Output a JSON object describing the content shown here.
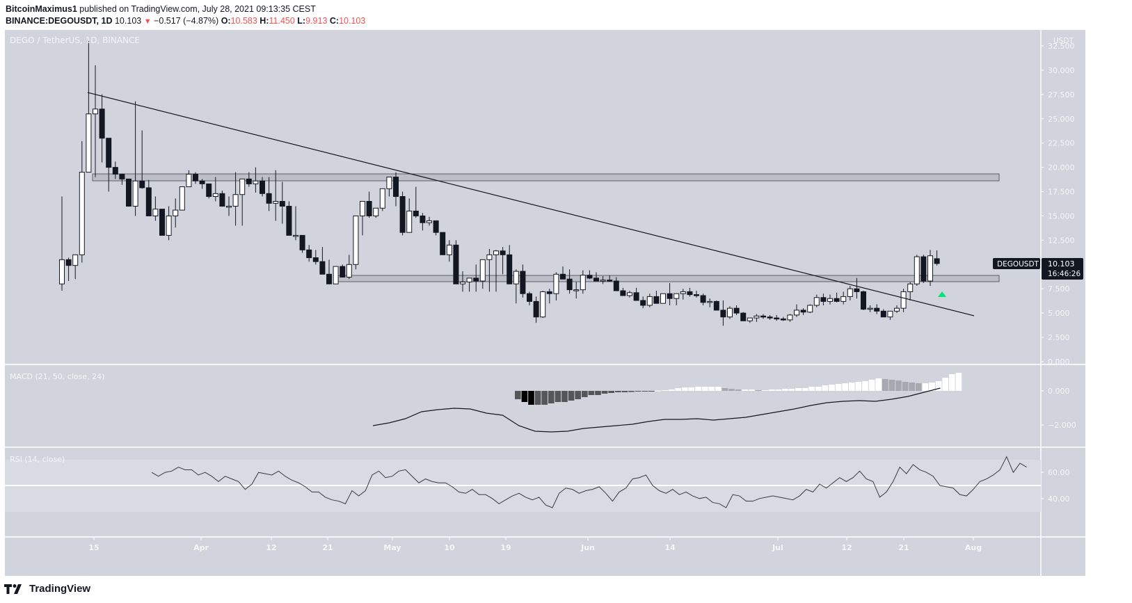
{
  "header": {
    "publisher": "BitcoinMaximus1",
    "published_text": " published on TradingView.com, July 28, 2021 09:13:35 CEST",
    "symbol_line": "BINANCE:DEGOUSDT, 1D",
    "last": "10.103",
    "change_icon": "triangle-down-icon",
    "change": "−0.517 (−4.87%)",
    "o_label": "O:",
    "o": "10.583",
    "h_label": "H:",
    "h": "11.450",
    "l_label": "L:",
    "l": "9.913",
    "c_label": "C:",
    "c": "10.103"
  },
  "chart_title": "DEGO / TetherUS, 1D, BINANCE",
  "price_axis": {
    "unit": "USDT",
    "ticks": [
      "32.500",
      "30.000",
      "27.500",
      "25.000",
      "22.500",
      "20.000",
      "17.500",
      "15.000",
      "12.500",
      "7.500",
      "5.000",
      "2.500",
      "0.000"
    ]
  },
  "price_label": {
    "symbol": "DEGOUSDT",
    "price": "10.103",
    "countdown": "16:46:26"
  },
  "macd": {
    "label": "MACD (21, 50, close, 24)",
    "ticks": [
      "0.000",
      "0.000",
      "−2.000"
    ]
  },
  "rsi": {
    "label": "RSI (14, close)",
    "ticks": [
      "60.00",
      "40.00"
    ]
  },
  "time_axis": {
    "ticks": [
      "15",
      "Apr",
      "12",
      "21",
      "May",
      "10",
      "19",
      "Jun",
      "14",
      "Jul",
      "12",
      "21",
      "Aug"
    ]
  },
  "footer": {
    "brand": "TradingView",
    "logo_icon": "tradingview-logo-icon"
  },
  "colors": {
    "bg": "#d1d4dc",
    "up": "#ffffff",
    "down": "#131722",
    "signal": "#00e676",
    "zone": "#bcbec8"
  },
  "chart_data": [
    {
      "type": "candlestick",
      "title": "DEGO / TetherUS, 1D, BINANCE",
      "ylabel": "USDT",
      "ylim": [
        0,
        33
      ],
      "x_ticks": [
        "15",
        "Apr",
        "12",
        "21",
        "May",
        "10",
        "19",
        "Jun",
        "14",
        "Jul",
        "12",
        "21",
        "Aug"
      ],
      "annotations": [
        {
          "type": "resistance_zone",
          "range": [
            18.7,
            19.4
          ]
        },
        {
          "type": "support_zone",
          "range": [
            8.3,
            8.9
          ]
        },
        {
          "type": "descending_trendline",
          "from": {
            "date": "Mar 15",
            "value": 27.7
          },
          "to": {
            "date": "Jul 31",
            "value": 4.8
          }
        },
        {
          "type": "signal_arrow_up",
          "date": "Jul 27",
          "value": 7.0,
          "color": "#00e676"
        }
      ],
      "ohlc": [
        [
          8.0,
          17.0,
          7.3,
          10.5
        ],
        [
          10.5,
          10.7,
          8.3,
          9.9
        ],
        [
          9.9,
          11.0,
          8.5,
          11.0
        ],
        [
          11.0,
          22.7,
          10.2,
          19.5
        ],
        [
          19.5,
          33.0,
          19.5,
          25.5
        ],
        [
          25.5,
          30.5,
          19.0,
          26.0
        ],
        [
          26.0,
          27.5,
          20.5,
          23.0
        ],
        [
          23.0,
          21.3,
          17.5,
          20.0
        ],
        [
          20.0,
          20.6,
          18.8,
          19.3
        ],
        [
          19.3,
          19.0,
          18.2,
          18.8
        ],
        [
          18.8,
          18.5,
          16.0,
          16.0
        ],
        [
          16.0,
          26.8,
          15.0,
          18.6
        ],
        [
          18.6,
          23.8,
          17.8,
          17.9
        ],
        [
          17.9,
          18.7,
          15.3,
          15.0
        ],
        [
          15.0,
          17.0,
          14.5,
          15.7
        ],
        [
          15.7,
          14.6,
          13.8,
          13.0
        ],
        [
          13.0,
          16.0,
          12.5,
          15.0
        ],
        [
          15.0,
          16.8,
          13.8,
          15.6
        ],
        [
          15.6,
          17.8,
          15.8,
          18.0
        ],
        [
          18.0,
          19.7,
          18.0,
          19.3
        ],
        [
          19.3,
          19.5,
          18.3,
          18.6
        ],
        [
          18.6,
          18.8,
          17.8,
          18.3
        ],
        [
          18.3,
          17.8,
          16.8,
          17.0
        ],
        [
          17.0,
          19.0,
          16.5,
          17.3
        ],
        [
          17.3,
          17.6,
          16.3,
          16.0
        ],
        [
          16.0,
          17.0,
          15.0,
          16.0
        ],
        [
          16.0,
          19.5,
          14.0,
          17.2
        ],
        [
          17.2,
          18.5,
          14.0,
          18.8
        ],
        [
          18.8,
          19.5,
          18.0,
          18.3
        ],
        [
          18.3,
          20.0,
          17.4,
          18.6
        ],
        [
          18.6,
          19.0,
          17.0,
          17.3
        ],
        [
          17.3,
          19.0,
          15.5,
          16.3
        ],
        [
          16.3,
          19.7,
          14.5,
          16.5
        ],
        [
          16.5,
          18.5,
          14.2,
          16.0
        ],
        [
          16.0,
          16.5,
          13.6,
          13.0
        ],
        [
          13.0,
          16.0,
          12.5,
          13.0
        ],
        [
          13.0,
          12.2,
          11.2,
          11.5
        ],
        [
          11.5,
          12.0,
          10.3,
          10.7
        ],
        [
          10.7,
          11.5,
          10.0,
          10.3
        ],
        [
          10.3,
          11.8,
          9.5,
          9.0
        ],
        [
          9.0,
          10.5,
          8.8,
          8.0
        ],
        [
          8.0,
          9.5,
          8.0,
          9.8
        ],
        [
          9.8,
          10.0,
          8.8,
          8.7
        ],
        [
          8.7,
          11.0,
          8.5,
          10.0
        ],
        [
          10.0,
          15.0,
          9.5,
          15.0
        ],
        [
          15.0,
          16.3,
          13.0,
          16.5
        ],
        [
          16.5,
          17.5,
          14.8,
          15.0
        ],
        [
          15.0,
          15.8,
          14.8,
          15.8
        ],
        [
          15.8,
          17.0,
          15.5,
          17.8
        ],
        [
          17.8,
          19.0,
          17.0,
          19.0
        ],
        [
          19.0,
          19.5,
          16.0,
          17.0
        ],
        [
          17.0,
          17.5,
          13.0,
          13.3
        ],
        [
          13.3,
          16.8,
          13.3,
          15.5
        ],
        [
          15.5,
          18.0,
          14.8,
          15.0
        ],
        [
          15.0,
          15.3,
          13.5,
          14.3
        ],
        [
          14.3,
          14.9,
          14.0,
          14.5
        ],
        [
          14.5,
          14.3,
          13.0,
          13.3
        ],
        [
          13.3,
          13.0,
          12.6,
          11.0
        ],
        [
          11.0,
          12.5,
          10.3,
          12.0
        ],
        [
          12.0,
          12.5,
          9.5,
          8.0
        ],
        [
          8.0,
          9.3,
          7.2,
          8.2
        ],
        [
          8.2,
          8.5,
          7.2,
          8.6
        ],
        [
          8.6,
          10.0,
          7.2,
          8.3
        ],
        [
          8.3,
          10.3,
          7.5,
          10.5
        ],
        [
          10.5,
          11.6,
          7.2,
          11.0
        ],
        [
          11.0,
          11.5,
          7.2,
          11.4
        ],
        [
          11.4,
          11.8,
          9.0,
          11.0
        ],
        [
          11.0,
          12.0,
          10.0,
          8.0
        ],
        [
          8.0,
          9.5,
          6.0,
          9.3
        ],
        [
          9.3,
          10.0,
          6.6,
          7.0
        ],
        [
          7.0,
          7.2,
          5.8,
          6.2
        ],
        [
          6.2,
          6.7,
          4.0,
          4.6
        ],
        [
          4.6,
          7.3,
          4.5,
          7.2
        ],
        [
          7.2,
          7.5,
          6.0,
          7.0
        ],
        [
          7.0,
          9.2,
          6.3,
          9.0
        ],
        [
          9.0,
          9.8,
          8.5,
          8.5
        ],
        [
          8.5,
          9.5,
          7.0,
          7.4
        ],
        [
          7.4,
          8.2,
          6.5,
          7.4
        ],
        [
          7.4,
          9.4,
          7.0,
          8.9
        ],
        [
          8.9,
          9.4,
          8.5,
          8.6
        ],
        [
          8.6,
          9.2,
          8.3,
          8.3
        ],
        [
          8.3,
          8.8,
          8.0,
          8.4
        ],
        [
          8.4,
          8.9,
          8.2,
          8.3
        ],
        [
          8.3,
          8.7,
          7.3,
          7.3
        ],
        [
          7.3,
          7.6,
          6.8,
          6.8
        ],
        [
          6.8,
          7.3,
          6.6,
          7.1
        ],
        [
          7.1,
          7.6,
          6.3,
          6.3
        ],
        [
          6.3,
          6.7,
          5.5,
          5.8
        ],
        [
          5.8,
          7.0,
          5.6,
          6.7
        ],
        [
          6.7,
          7.3,
          6.0,
          6.0
        ],
        [
          6.0,
          7.0,
          6.0,
          7.0
        ],
        [
          7.0,
          8.1,
          5.8,
          6.5
        ],
        [
          6.5,
          7.0,
          5.8,
          7.0
        ],
        [
          7.0,
          7.5,
          6.4,
          7.2
        ],
        [
          7.2,
          7.6,
          6.7,
          6.9
        ],
        [
          6.9,
          7.3,
          6.6,
          6.8
        ],
        [
          6.8,
          7.0,
          5.8,
          6.1
        ],
        [
          6.1,
          6.5,
          5.6,
          6.2
        ],
        [
          6.2,
          6.3,
          5.4,
          5.3
        ],
        [
          5.3,
          6.3,
          3.7,
          4.6
        ],
        [
          4.6,
          5.7,
          4.4,
          5.5
        ],
        [
          5.5,
          5.8,
          4.8,
          5.0
        ],
        [
          5.0,
          5.1,
          4.2,
          4.2
        ],
        [
          4.2,
          4.5,
          4.0,
          4.5
        ],
        [
          4.5,
          4.9,
          4.1,
          4.7
        ],
        [
          4.7,
          4.9,
          4.4,
          4.6
        ],
        [
          4.6,
          4.8,
          4.3,
          4.5
        ],
        [
          4.5,
          4.8,
          4.2,
          4.4
        ],
        [
          4.4,
          4.6,
          4.2,
          4.3
        ],
        [
          4.3,
          4.9,
          4.1,
          4.8
        ],
        [
          4.8,
          5.9,
          4.6,
          5.3
        ],
        [
          5.3,
          5.5,
          4.8,
          5.1
        ],
        [
          5.1,
          5.9,
          5.0,
          5.8
        ],
        [
          5.8,
          6.9,
          5.6,
          6.6
        ],
        [
          6.6,
          7.0,
          5.8,
          6.2
        ],
        [
          6.2,
          6.9,
          5.9,
          6.5
        ],
        [
          6.5,
          7.1,
          6.1,
          6.2
        ],
        [
          6.2,
          7.2,
          5.9,
          6.7
        ],
        [
          6.7,
          7.8,
          6.3,
          7.5
        ],
        [
          7.5,
          8.6,
          6.5,
          7.2
        ],
        [
          7.2,
          7.3,
          5.3,
          5.4
        ],
        [
          5.4,
          5.8,
          5.1,
          5.5
        ],
        [
          5.5,
          5.9,
          4.9,
          5.2
        ],
        [
          5.2,
          5.4,
          4.6,
          4.6
        ],
        [
          4.6,
          5.2,
          4.3,
          5.2
        ],
        [
          5.2,
          5.8,
          5.0,
          5.5
        ],
        [
          5.5,
          7.5,
          5.1,
          7.2
        ],
        [
          7.2,
          8.2,
          6.3,
          8.0
        ],
        [
          8.0,
          11.0,
          7.8,
          10.8
        ],
        [
          10.8,
          11.0,
          8.1,
          8.3
        ],
        [
          8.3,
          11.5,
          7.8,
          10.9
        ],
        [
          10.6,
          11.45,
          9.9,
          10.1
        ]
      ]
    },
    {
      "type": "bar+line",
      "title": "MACD (21, 50, close, 24)",
      "ylim": [
        -3.2,
        1.4
      ],
      "histogram": [
        -0.6,
        -0.8,
        -1.0,
        -1.0,
        -1.0,
        -0.9,
        -0.8,
        -0.8,
        -0.7,
        -0.6,
        -0.45,
        -0.3,
        -0.3,
        -0.2,
        -0.15,
        -0.1,
        -0.1,
        -0.08,
        -0.05,
        -0.05,
        -0.02,
        0.02,
        0.05,
        0.1,
        0.2,
        0.25,
        0.25,
        0.3,
        0.3,
        0.3,
        0.3,
        0.2,
        0.15,
        0.1,
        0.1,
        0.1,
        0.05,
        0.05,
        0.1,
        0.1,
        0.15,
        0.15,
        0.2,
        0.2,
        0.3,
        0.3,
        0.4,
        0.45,
        0.5,
        0.55,
        0.6,
        0.65,
        0.7,
        0.8,
        0.9,
        0.85,
        0.8,
        0.75,
        0.65,
        0.6,
        0.55,
        0.55,
        0.6,
        0.7,
        0.95,
        1.2,
        1.3
      ],
      "macd_line": [
        -2.5,
        -2.3,
        -2.0,
        -1.5,
        -1.35,
        -1.25,
        -1.3,
        -1.6,
        -1.75,
        -2.5,
        -2.9,
        -2.95,
        -2.9,
        -2.7,
        -2.6,
        -2.5,
        -2.4,
        -2.2,
        -2.05,
        -2.05,
        -2.0,
        -2.1,
        -2.0,
        -1.9,
        -1.7,
        -1.5,
        -1.3,
        -1.05,
        -0.85,
        -0.75,
        -0.7,
        -0.75,
        -0.6,
        -0.4,
        -0.1,
        0.2
      ]
    },
    {
      "type": "line",
      "title": "RSI (14, close)",
      "ylim": [
        20,
        80
      ],
      "bands": [
        30,
        50,
        70
      ],
      "values": [
        60,
        57,
        60,
        61,
        64,
        62,
        62,
        58,
        60,
        57,
        53,
        57,
        55,
        53,
        47,
        51,
        60,
        59,
        58,
        61,
        57,
        54,
        52,
        49,
        45,
        45,
        41,
        39,
        38,
        36,
        46,
        42,
        46,
        58,
        61,
        56,
        57,
        61,
        62,
        57,
        52,
        55,
        53,
        52,
        52,
        49,
        45,
        44,
        47,
        43,
        43,
        40,
        36,
        39,
        42,
        44,
        41,
        39,
        41,
        35,
        33,
        44,
        48,
        47,
        44,
        46,
        47,
        49,
        44,
        38,
        45,
        48,
        55,
        56,
        58,
        50,
        46,
        44,
        47,
        43,
        45,
        42,
        40,
        41,
        37,
        36,
        33,
        43,
        42,
        38,
        38,
        40,
        41,
        42,
        41,
        40,
        39,
        42,
        47,
        45,
        51,
        48,
        52,
        56,
        53,
        56,
        61,
        55,
        53,
        41,
        45,
        53,
        64,
        59,
        66,
        62,
        60,
        57,
        50,
        49,
        48,
        43,
        42,
        47,
        53,
        55,
        58,
        62,
        72,
        60,
        67,
        64
      ]
    }
  ]
}
